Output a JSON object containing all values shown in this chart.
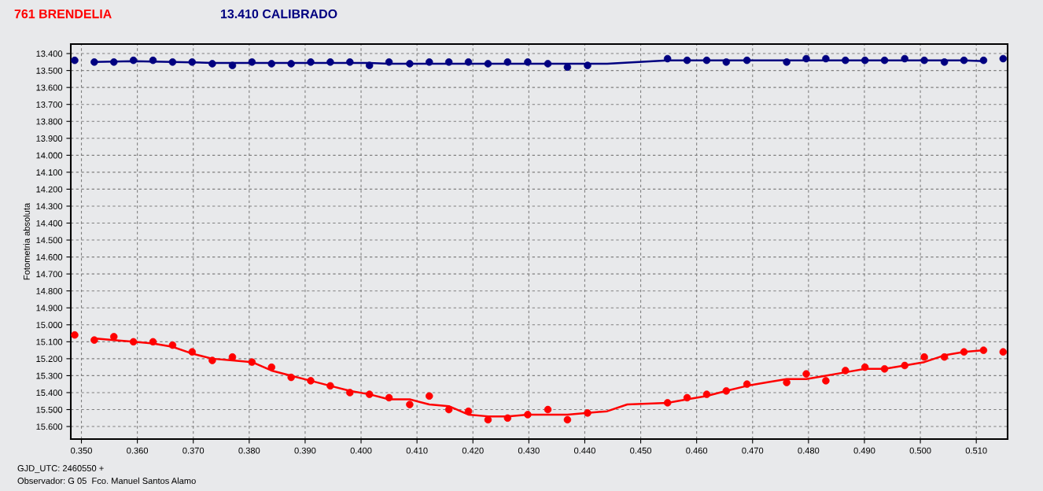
{
  "chart_data": {
    "type": "scatter",
    "ylabel": "Fotometria absoluta",
    "annotations": [
      "GJD_UTC: 2460550 +",
      "Observador: G 05  Fco. Manuel Santos Alamo"
    ],
    "xlim": [
      0.3481,
      0.5156
    ],
    "ylim": [
      15.674,
      13.344
    ],
    "xticks": [
      {
        "value": 0.35,
        "label": "0.350"
      },
      {
        "value": 0.36,
        "label": "0.360"
      },
      {
        "value": 0.37,
        "label": "0.370"
      },
      {
        "value": 0.38,
        "label": "0.380"
      },
      {
        "value": 0.39,
        "label": "0.390"
      },
      {
        "value": 0.4,
        "label": "0.400"
      },
      {
        "value": 0.41,
        "label": "0.410"
      },
      {
        "value": 0.42,
        "label": "0.420"
      },
      {
        "value": 0.43,
        "label": "0.430"
      },
      {
        "value": 0.44,
        "label": "0.440"
      },
      {
        "value": 0.45,
        "label": "0.450"
      },
      {
        "value": 0.46,
        "label": "0.460"
      },
      {
        "value": 0.47,
        "label": "0.470"
      },
      {
        "value": 0.48,
        "label": "0.480"
      },
      {
        "value": 0.49,
        "label": "0.490"
      },
      {
        "value": 0.5,
        "label": "0.500"
      },
      {
        "value": 0.51,
        "label": "0.510"
      }
    ],
    "yticks": [
      {
        "value": 13.4,
        "label": "13.400"
      },
      {
        "value": 13.5,
        "label": "13.500"
      },
      {
        "value": 13.6,
        "label": "13.600"
      },
      {
        "value": 13.7,
        "label": "13.700"
      },
      {
        "value": 13.8,
        "label": "13.800"
      },
      {
        "value": 13.9,
        "label": "13.900"
      },
      {
        "value": 14.0,
        "label": "14.000"
      },
      {
        "value": 14.1,
        "label": "14.100"
      },
      {
        "value": 14.2,
        "label": "14.200"
      },
      {
        "value": 14.3,
        "label": "14.300"
      },
      {
        "value": 14.4,
        "label": "14.400"
      },
      {
        "value": 14.5,
        "label": "14.500"
      },
      {
        "value": 14.6,
        "label": "14.600"
      },
      {
        "value": 14.7,
        "label": "14.700"
      },
      {
        "value": 14.8,
        "label": "14.800"
      },
      {
        "value": 14.9,
        "label": "14.900"
      },
      {
        "value": 15.0,
        "label": "15.000"
      },
      {
        "value": 15.1,
        "label": "15.100"
      },
      {
        "value": 15.2,
        "label": "15.200"
      },
      {
        "value": 15.3,
        "label": "15.300"
      },
      {
        "value": 15.4,
        "label": "15.400"
      },
      {
        "value": 15.5,
        "label": "15.500"
      },
      {
        "value": 15.6,
        "label": "15.600"
      }
    ],
    "grid": true,
    "line_style": "solid",
    "series": [
      {
        "name": "761 BRENDELIA",
        "marker": "circle",
        "color": "#ff0000",
        "x": [
          0.3488,
          0.3523,
          0.3558,
          0.3593,
          0.3628,
          0.3663,
          0.3698,
          0.3734,
          0.377,
          0.3805,
          0.384,
          0.3875,
          0.391,
          0.3945,
          0.398,
          0.4015,
          0.405,
          0.4087,
          0.4122,
          0.4157,
          0.4192,
          0.4227,
          0.4262,
          0.4298,
          0.4334,
          0.4369,
          0.4405,
          0.4548,
          0.4583,
          0.4618,
          0.4653,
          0.469,
          0.4761,
          0.4796,
          0.4831,
          0.4866,
          0.4901,
          0.4936,
          0.4972,
          0.5007,
          0.5043,
          0.5078,
          0.5113,
          0.5148
        ],
        "values": [
          15.06,
          15.09,
          15.07,
          15.1,
          15.1,
          15.12,
          15.16,
          15.21,
          15.19,
          15.22,
          15.25,
          15.31,
          15.33,
          15.36,
          15.4,
          15.41,
          15.43,
          15.47,
          15.42,
          15.5,
          15.51,
          15.56,
          15.55,
          15.53,
          15.5,
          15.56,
          15.52,
          15.46,
          15.43,
          15.41,
          15.39,
          15.35,
          15.34,
          15.29,
          15.33,
          15.27,
          15.25,
          15.26,
          15.24,
          15.19,
          15.19,
          15.16,
          15.15,
          15.16
        ]
      },
      {
        "type": "line",
        "color": "#ff0000",
        "x": [
          0.3523,
          0.3558,
          0.3593,
          0.3628,
          0.3663,
          0.3698,
          0.3734,
          0.377,
          0.3805,
          0.384,
          0.3875,
          0.391,
          0.3945,
          0.398,
          0.4015,
          0.405,
          0.4087,
          0.4122,
          0.4157,
          0.4192,
          0.4227,
          0.4262,
          0.4298,
          0.4334,
          0.4369,
          0.4405,
          0.444,
          0.4476,
          0.4548,
          0.4583,
          0.4618,
          0.4653,
          0.469,
          0.4725,
          0.4761,
          0.4796,
          0.4831,
          0.4866,
          0.4901,
          0.4936,
          0.4972,
          0.5007,
          0.5043,
          0.5078,
          0.5113
        ],
        "values": [
          15.08,
          15.09,
          15.1,
          15.11,
          15.13,
          15.17,
          15.2,
          15.21,
          15.22,
          15.27,
          15.3,
          15.33,
          15.36,
          15.39,
          15.41,
          15.44,
          15.44,
          15.47,
          15.48,
          15.53,
          15.54,
          15.54,
          15.53,
          15.53,
          15.53,
          15.52,
          15.51,
          15.47,
          15.46,
          15.44,
          15.42,
          15.39,
          15.36,
          15.34,
          15.32,
          15.32,
          15.3,
          15.28,
          15.26,
          15.26,
          15.24,
          15.22,
          15.18,
          15.16,
          15.15
        ]
      },
      {
        "name": "13.410 CALIBRADO",
        "marker": "circle",
        "color": "#000080",
        "x": [
          0.3488,
          0.3523,
          0.3558,
          0.3593,
          0.3628,
          0.3663,
          0.3698,
          0.3734,
          0.377,
          0.3805,
          0.384,
          0.3875,
          0.391,
          0.3945,
          0.398,
          0.4015,
          0.405,
          0.4087,
          0.4122,
          0.4157,
          0.4192,
          0.4227,
          0.4262,
          0.4298,
          0.4334,
          0.4369,
          0.4405,
          0.4548,
          0.4583,
          0.4618,
          0.4653,
          0.469,
          0.4761,
          0.4796,
          0.4831,
          0.4866,
          0.4901,
          0.4936,
          0.4972,
          0.5007,
          0.5043,
          0.5078,
          0.5113,
          0.5148
        ],
        "values": [
          13.44,
          13.45,
          13.45,
          13.44,
          13.44,
          13.45,
          13.45,
          13.46,
          13.47,
          13.45,
          13.46,
          13.46,
          13.45,
          13.45,
          13.45,
          13.47,
          13.45,
          13.46,
          13.45,
          13.45,
          13.45,
          13.46,
          13.45,
          13.45,
          13.46,
          13.48,
          13.47,
          13.43,
          13.44,
          13.44,
          13.45,
          13.44,
          13.45,
          13.43,
          13.43,
          13.44,
          13.44,
          13.44,
          13.43,
          13.44,
          13.45,
          13.44,
          13.44,
          13.43
        ]
      },
      {
        "type": "line",
        "color": "#000080",
        "x": [
          0.3523,
          0.3593,
          0.3663,
          0.3734,
          0.4015,
          0.405,
          0.4405,
          0.444,
          0.4548,
          0.5078,
          0.5113
        ],
        "values": [
          13.45,
          13.445,
          13.45,
          13.455,
          13.455,
          13.46,
          13.46,
          13.46,
          13.44,
          13.44,
          13.445
        ]
      }
    ]
  }
}
